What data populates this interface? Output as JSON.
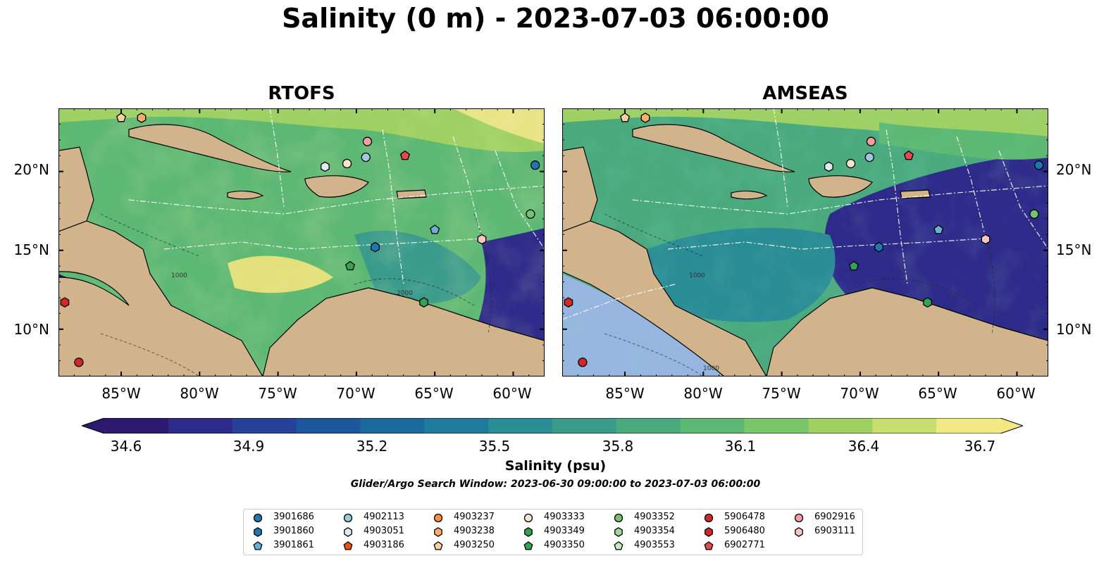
{
  "title": "Salinity (0 m) - 2023-07-03 06:00:00",
  "panels": [
    {
      "name": "rtofs",
      "title": "RTOFS"
    },
    {
      "name": "amseas",
      "title": "AMSEAS"
    }
  ],
  "map": {
    "lon_range": [
      -89,
      -58
    ],
    "lat_range": [
      7,
      24
    ],
    "lat_ticks": [
      {
        "value": 20,
        "label": "20°N"
      },
      {
        "value": 15,
        "label": "15°N"
      },
      {
        "value": 10,
        "label": "10°N"
      }
    ],
    "lon_ticks": [
      {
        "value": -85,
        "label": "85°W"
      },
      {
        "value": -80,
        "label": "80°W"
      },
      {
        "value": -75,
        "label": "75°W"
      },
      {
        "value": -70,
        "label": "70°W"
      },
      {
        "value": -65,
        "label": "65°W"
      },
      {
        "value": -60,
        "label": "60°W"
      }
    ],
    "contour_labels": [
      "1000",
      "2000"
    ]
  },
  "colorbar": {
    "label": "Salinity (psu)",
    "min": 34.6,
    "max": 36.7,
    "ticks": [
      "34.6",
      "34.9",
      "35.2",
      "35.5",
      "35.8",
      "36.1",
      "36.4",
      "36.7"
    ],
    "colors": [
      "#2b1a6e",
      "#2d2a8a",
      "#25419a",
      "#1c579e",
      "#1b6a9e",
      "#1f7b9c",
      "#2a8c95",
      "#3a9b8b",
      "#4aaa7e",
      "#5db873",
      "#7ac56a",
      "#9ed063",
      "#c7dd6e",
      "#f2e985"
    ]
  },
  "search_window": "Glider/Argo Search Window: 2023-06-30 09:00:00 to 2023-07-03 06:00:00",
  "legend": {
    "columns": [
      [
        {
          "id": "3901686",
          "marker": "circle",
          "color": "#1f77b4"
        },
        {
          "id": "3901860",
          "marker": "hexagon",
          "color": "#1f77b4"
        },
        {
          "id": "3901861",
          "marker": "pentagon",
          "color": "#6baed6"
        }
      ],
      [
        {
          "id": "4902113",
          "marker": "circle",
          "color": "#9ecae1"
        },
        {
          "id": "4903051",
          "marker": "hexagon",
          "color": "#deebf7"
        },
        {
          "id": "4903186",
          "marker": "pentagon",
          "color": "#e6550d"
        }
      ],
      [
        {
          "id": "4903237",
          "marker": "circle",
          "color": "#fd8d3c"
        },
        {
          "id": "4903238",
          "marker": "hexagon",
          "color": "#fdae6b"
        },
        {
          "id": "4903250",
          "marker": "pentagon",
          "color": "#fdd0a2"
        }
      ],
      [
        {
          "id": "4903333",
          "marker": "circle",
          "color": "#fee6ce"
        },
        {
          "id": "4903349",
          "marker": "hexagon",
          "color": "#31a354"
        },
        {
          "id": "4903350",
          "marker": "pentagon",
          "color": "#31a354"
        }
      ],
      [
        {
          "id": "4903352",
          "marker": "circle",
          "color": "#74c476"
        },
        {
          "id": "4903354",
          "marker": "hexagon",
          "color": "#a1d99b"
        },
        {
          "id": "4903553",
          "marker": "pentagon",
          "color": "#c7e9c0"
        }
      ],
      [
        {
          "id": "5906478",
          "marker": "circle",
          "color": "#d62728"
        },
        {
          "id": "5906480",
          "marker": "hexagon",
          "color": "#d62728"
        },
        {
          "id": "6902771",
          "marker": "pentagon",
          "color": "#e34a4a"
        }
      ],
      [
        {
          "id": "6902916",
          "marker": "circle",
          "color": "#f4a0a0"
        },
        {
          "id": "6903111",
          "marker": "hexagon",
          "color": "#fcc5c0"
        }
      ]
    ]
  },
  "floats": [
    {
      "id": "3901686",
      "marker": "circle",
      "color": "#1f77b4",
      "lon": -58.6,
      "lat": 20.4
    },
    {
      "id": "3901860",
      "marker": "hexagon",
      "color": "#1f77b4",
      "lon": -68.8,
      "lat": 15.2
    },
    {
      "id": "3901861",
      "marker": "pentagon",
      "color": "#6baed6",
      "lon": -65.0,
      "lat": 16.3
    },
    {
      "id": "4902113",
      "marker": "circle",
      "color": "#9ecae1",
      "lon": -69.4,
      "lat": 20.9
    },
    {
      "id": "4903051",
      "marker": "hexagon",
      "color": "#deebf7",
      "lon": -72.0,
      "lat": 20.3
    },
    {
      "id": "4903238",
      "marker": "hexagon",
      "color": "#fdae6b",
      "lon": -83.7,
      "lat": 23.4
    },
    {
      "id": "4903250",
      "marker": "pentagon",
      "color": "#fdd0a2",
      "lon": -85.0,
      "lat": 23.4
    },
    {
      "id": "4903333",
      "marker": "circle",
      "color": "#fee6ce",
      "lon": -70.6,
      "lat": 20.5
    },
    {
      "id": "4903349",
      "marker": "hexagon",
      "color": "#31a354",
      "lon": -65.7,
      "lat": 11.7
    },
    {
      "id": "4903350",
      "marker": "pentagon",
      "color": "#31a354",
      "lon": -70.4,
      "lat": 14.0
    },
    {
      "id": "4903352",
      "marker": "circle",
      "color": "#74c476",
      "lon": -58.9,
      "lat": 17.3
    },
    {
      "id": "5906478",
      "marker": "circle",
      "color": "#d62728",
      "lon": -87.7,
      "lat": 7.9
    },
    {
      "id": "5906480",
      "marker": "hexagon",
      "color": "#d62728",
      "lon": -88.6,
      "lat": 11.7
    },
    {
      "id": "6902771",
      "marker": "pentagon",
      "color": "#e34a4a",
      "lon": -66.9,
      "lat": 21.0
    },
    {
      "id": "6902916",
      "marker": "circle",
      "color": "#f4a0a0",
      "lon": -69.3,
      "lat": 21.9
    },
    {
      "id": "6903111",
      "marker": "hexagon",
      "color": "#fcc5c0",
      "lon": -62.0,
      "lat": 15.7
    }
  ]
}
